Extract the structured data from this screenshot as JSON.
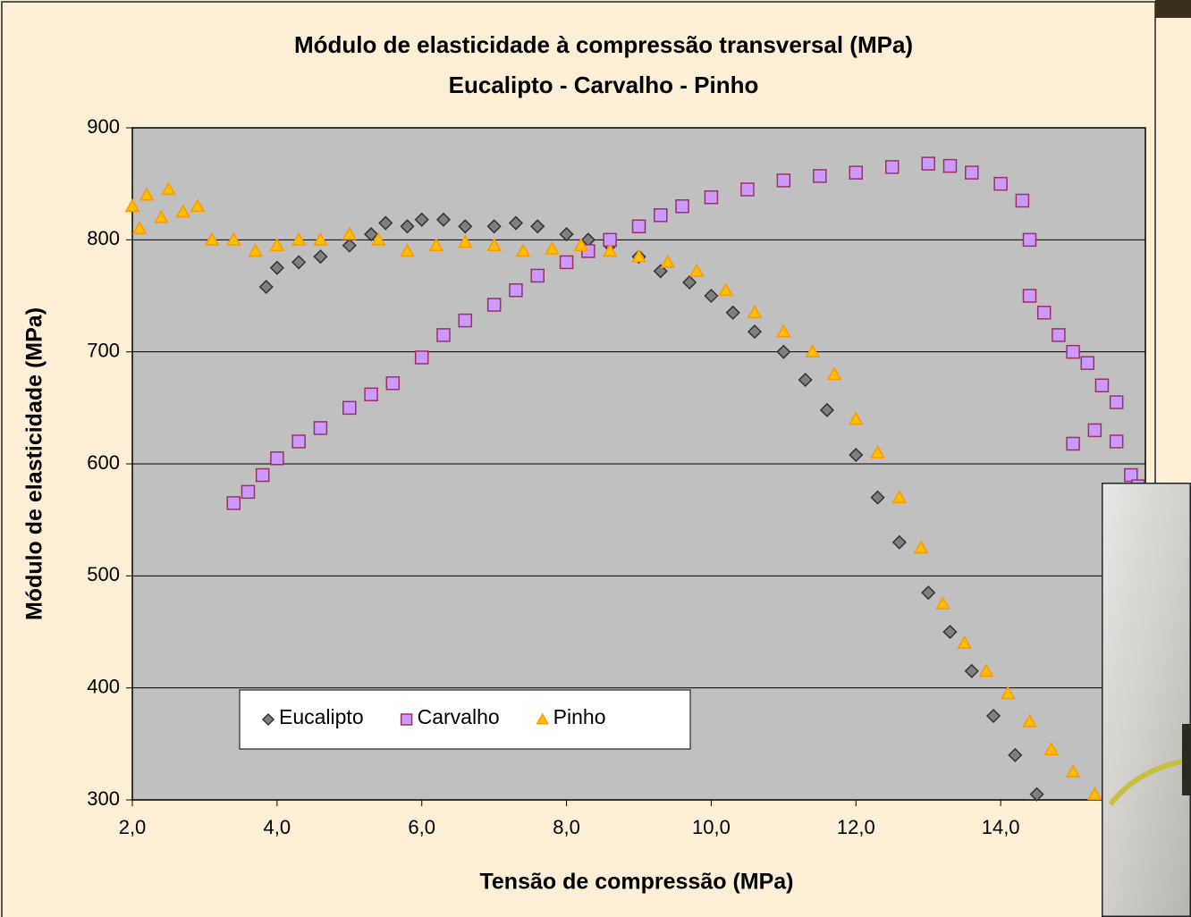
{
  "chart_data": {
    "type": "scatter",
    "title": "Módulo de elasticidade à compressão transversal (MPa)",
    "subtitle": "Eucalipto - Carvalho - Pinho",
    "x_label": "Tensão de compressão (MPa)",
    "y_label": "Módulo de elasticidade (MPa)",
    "xlim": [
      2,
      16
    ],
    "ylim": [
      300,
      900
    ],
    "xticks": [
      {
        "value": 2,
        "label": "2,0"
      },
      {
        "value": 4,
        "label": "4,0"
      },
      {
        "value": 6,
        "label": "6,0"
      },
      {
        "value": 8,
        "label": "8,0"
      },
      {
        "value": 10,
        "label": "10,0"
      },
      {
        "value": 12,
        "label": "12,0"
      },
      {
        "value": 14,
        "label": "14,0"
      }
    ],
    "yticks": [
      300,
      400,
      500,
      600,
      700,
      800,
      900
    ],
    "grid": true,
    "legend": "lower left",
    "series": [
      {
        "name": "Eucalipto",
        "color": "#808080",
        "marker": "diamond",
        "x": [
          3.85,
          4.0,
          4.3,
          4.6,
          5.0,
          5.3,
          5.5,
          5.8,
          6.0,
          6.3,
          6.6,
          7.0,
          7.3,
          7.6,
          8.0,
          8.3,
          8.6,
          9.0,
          9.3,
          9.7,
          10.0,
          10.3,
          10.6,
          11.0,
          11.3,
          11.6,
          12.0,
          12.3,
          12.6,
          13.0,
          13.3,
          13.6,
          13.9,
          14.2,
          14.5
        ],
        "values": [
          758,
          775,
          780,
          785,
          795,
          805,
          815,
          812,
          818,
          818,
          812,
          812,
          815,
          812,
          805,
          800,
          795,
          785,
          772,
          762,
          750,
          735,
          718,
          700,
          675,
          648,
          608,
          570,
          530,
          485,
          450,
          415,
          375,
          340,
          305
        ]
      },
      {
        "name": "Carvalho",
        "color": "#cc99ff",
        "marker": "square",
        "x": [
          3.4,
          3.6,
          3.8,
          4.0,
          4.3,
          4.6,
          5.0,
          5.3,
          5.6,
          6.0,
          6.3,
          6.6,
          7.0,
          7.3,
          7.6,
          8.0,
          8.3,
          8.6,
          9.0,
          9.3,
          9.6,
          10.0,
          10.5,
          11.0,
          11.5,
          12.0,
          12.5,
          13.0,
          13.3,
          13.6,
          14.0,
          14.3,
          14.4,
          14.4,
          14.6,
          14.8,
          15.0,
          15.2,
          15.4,
          15.6,
          15.6,
          15.3,
          15.0,
          15.8,
          15.9
        ],
        "values": [
          565,
          575,
          590,
          605,
          620,
          632,
          650,
          662,
          672,
          695,
          715,
          728,
          742,
          755,
          768,
          780,
          790,
          800,
          812,
          822,
          830,
          838,
          845,
          853,
          857,
          860,
          865,
          868,
          866,
          860,
          850,
          835,
          800,
          750,
          735,
          715,
          700,
          690,
          670,
          655,
          620,
          630,
          618,
          590,
          580
        ]
      },
      {
        "name": "Pinho",
        "color": "#ffc000",
        "marker": "triangle",
        "x": [
          2.0,
          2.1,
          2.2,
          2.4,
          2.5,
          2.7,
          2.9,
          3.1,
          3.4,
          3.7,
          4.0,
          4.3,
          4.6,
          5.0,
          5.4,
          5.8,
          6.2,
          6.6,
          7.0,
          7.4,
          7.8,
          8.2,
          8.6,
          9.0,
          9.4,
          9.8,
          10.2,
          10.6,
          11.0,
          11.4,
          11.7,
          12.0,
          12.3,
          12.6,
          12.9,
          13.2,
          13.5,
          13.8,
          14.1,
          14.4,
          14.7,
          15.0,
          15.3
        ],
        "values": [
          830,
          810,
          840,
          820,
          845,
          825,
          830,
          800,
          800,
          790,
          795,
          800,
          800,
          805,
          800,
          790,
          795,
          798,
          795,
          790,
          792,
          795,
          790,
          785,
          780,
          772,
          755,
          735,
          718,
          700,
          680,
          640,
          610,
          570,
          525,
          475,
          440,
          415,
          395,
          370,
          345,
          325,
          305
        ]
      }
    ]
  }
}
